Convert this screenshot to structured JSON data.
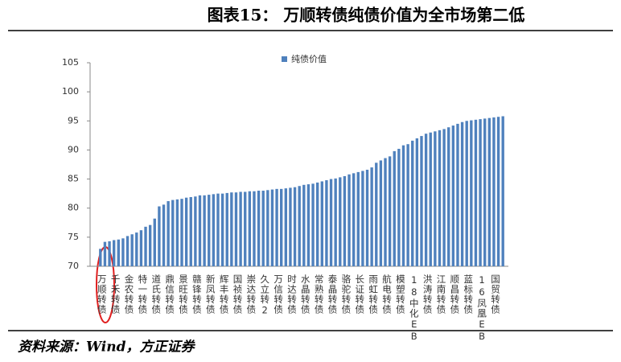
{
  "chart_data": {
    "type": "bar",
    "title": "图表15：  万顺转债纯债价值为全市场第二低",
    "source": "资料来源：Wind，方正证券",
    "categories": [
      "万顺转债",
      null,
      null,
      "千禾转债",
      null,
      null,
      "金农转债",
      null,
      null,
      "特一转债",
      null,
      null,
      "道氏转债",
      null,
      null,
      "鼎信转债",
      null,
      null,
      "景旺转债",
      null,
      null,
      "赣锋转债",
      null,
      null,
      "新凤转债",
      null,
      null,
      "辉丰转债",
      null,
      null,
      "国祯转债",
      null,
      null,
      "崇达转债",
      null,
      null,
      "久立转2",
      null,
      null,
      "万信转债",
      null,
      null,
      "时达转债",
      null,
      null,
      "水晶转债",
      null,
      null,
      "常熟转债",
      null,
      null,
      "泰晶转债",
      null,
      null,
      "骆驼转债",
      null,
      null,
      "长证转债",
      null,
      null,
      "雨虹转债",
      null,
      null,
      "航电转债",
      null,
      null,
      "模塑转债",
      null,
      null,
      "18中化EB",
      null,
      null,
      "洪涛转债",
      null,
      null,
      "江南转债",
      null,
      null,
      "顺昌转债",
      null,
      null,
      "蓝标转债",
      null,
      null,
      "16凤凰EB",
      null,
      null,
      "国贸转债",
      null,
      null
    ],
    "series": [
      {
        "name": "纯债价值",
        "color": "#4f81bd",
        "values": [
          73.0,
          74.2,
          74.3,
          74.5,
          74.6,
          74.8,
          75.2,
          75.5,
          75.8,
          76.2,
          76.8,
          77.1,
          78.2,
          80.3,
          80.6,
          81.2,
          81.4,
          81.5,
          81.6,
          81.8,
          81.9,
          82.0,
          82.2,
          82.2,
          82.3,
          82.4,
          82.5,
          82.5,
          82.6,
          82.7,
          82.7,
          82.8,
          82.8,
          82.9,
          82.9,
          83.0,
          83.0,
          83.1,
          83.2,
          83.3,
          83.3,
          83.4,
          83.5,
          83.6,
          83.8,
          84.0,
          84.1,
          84.2,
          84.4,
          84.6,
          84.8,
          85.0,
          85.1,
          85.3,
          85.5,
          85.8,
          86.0,
          86.2,
          86.4,
          86.6,
          87.0,
          87.8,
          88.2,
          88.6,
          88.9,
          89.8,
          90.2,
          90.8,
          91.0,
          91.6,
          92.0,
          92.4,
          92.8,
          93.0,
          93.2,
          93.4,
          93.6,
          93.9,
          94.2,
          94.5,
          94.8,
          95.0,
          95.1,
          95.2,
          95.3,
          95.4,
          95.5,
          95.6,
          95.7,
          95.8
        ]
      }
    ],
    "ylim": [
      70,
      105
    ],
    "yticks": [
      70,
      75,
      80,
      85,
      90,
      95,
      100,
      105
    ],
    "grid": false,
    "legend": "top"
  }
}
